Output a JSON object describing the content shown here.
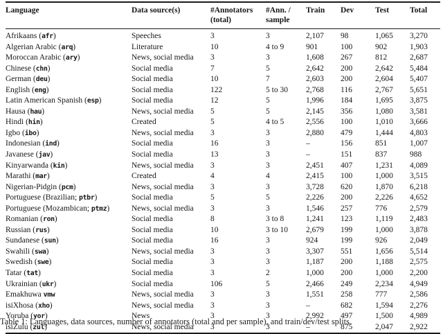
{
  "table": {
    "columns": [
      {
        "l1": "Language",
        "l2": ""
      },
      {
        "l1": "Data source(s)",
        "l2": ""
      },
      {
        "l1": "#Annotators",
        "l2": "(total)"
      },
      {
        "l1": "#Ann. /",
        "l2": "sample"
      },
      {
        "l1": "Train",
        "l2": ""
      },
      {
        "l1": "Dev",
        "l2": ""
      },
      {
        "l1": "Test",
        "l2": ""
      },
      {
        "l1": "Total",
        "l2": ""
      }
    ],
    "rows": [
      {
        "pre": "Afrikaans (",
        "code": "afr",
        "post": ")",
        "source": "Speeches",
        "ann_total": "3",
        "ann_sample": "3",
        "train": "2,107",
        "dev": "98",
        "test": "1,065",
        "total": "3,270"
      },
      {
        "pre": "Algerian Arabic (",
        "code": "arq",
        "post": ")",
        "source": "Literature",
        "ann_total": "10",
        "ann_sample": "4 to 9",
        "train": "901",
        "dev": "100",
        "test": "902",
        "total": "1,903"
      },
      {
        "pre": "Moroccan Arabic (",
        "code": "ary",
        "post": ")",
        "source": "News, social media",
        "ann_total": "3",
        "ann_sample": "3",
        "train": "1,608",
        "dev": "267",
        "test": "812",
        "total": "2,687"
      },
      {
        "pre": "Chinese (",
        "code": "chn",
        "post": ")",
        "source": "Social media",
        "ann_total": "7",
        "ann_sample": "5",
        "train": "2,642",
        "dev": "200",
        "test": "2,642",
        "total": "5,484"
      },
      {
        "pre": "German (",
        "code": "deu",
        "post": ")",
        "source": "Social media",
        "ann_total": "10",
        "ann_sample": "7",
        "train": "2,603",
        "dev": "200",
        "test": "2,604",
        "total": "5,407"
      },
      {
        "pre": "English (",
        "code": "eng",
        "post": ")",
        "source": "Social media",
        "ann_total": "122",
        "ann_sample": "5 to 30",
        "train": "2,768",
        "dev": "116",
        "test": "2,767",
        "total": "5,651"
      },
      {
        "pre": "Latin American Spanish (",
        "code": "esp",
        "post": ")",
        "source": "Social media",
        "ann_total": "12",
        "ann_sample": "5",
        "train": "1,996",
        "dev": "184",
        "test": "1,695",
        "total": "3,875"
      },
      {
        "pre": "Hausa (",
        "code": "hau",
        "post": ")",
        "source": "News, social media",
        "ann_total": "5",
        "ann_sample": "5",
        "train": "2,145",
        "dev": "356",
        "test": "1,080",
        "total": "3,581"
      },
      {
        "pre": "Hindi (",
        "code": "hin",
        "post": ")",
        "source": "Created",
        "ann_total": "5",
        "ann_sample": "4 to 5",
        "train": "2,556",
        "dev": "100",
        "test": "1,010",
        "total": "3,666"
      },
      {
        "pre": "Igbo (",
        "code": "ibo",
        "post": ")",
        "source": "News, social media",
        "ann_total": "3",
        "ann_sample": "3",
        "train": "2,880",
        "dev": "479",
        "test": "1,444",
        "total": "4,803"
      },
      {
        "pre": "Indonesian (",
        "code": "ind",
        "post": ")",
        "source": "Social media",
        "ann_total": "16",
        "ann_sample": "3",
        "train": "–",
        "dev": "156",
        "test": "851",
        "total": "1,007"
      },
      {
        "pre": "Javanese (",
        "code": "jav",
        "post": ")",
        "source": "Social media",
        "ann_total": "13",
        "ann_sample": "3",
        "train": "–",
        "dev": "151",
        "test": "837",
        "total": "988"
      },
      {
        "pre": "Kinyarwanda (",
        "code": "kin",
        "post": ")",
        "source": "News, social media",
        "ann_total": "3",
        "ann_sample": "3",
        "train": "2,451",
        "dev": "407",
        "test": "1,231",
        "total": "4,089"
      },
      {
        "pre": "Marathi (",
        "code": "mar",
        "post": ")",
        "source": "Created",
        "ann_total": "4",
        "ann_sample": "4",
        "train": "2,415",
        "dev": "100",
        "test": "1,000",
        "total": "3,515"
      },
      {
        "pre": "Nigerian-Pidgin (",
        "code": "pcm",
        "post": ")",
        "source": "News, social media",
        "ann_total": "3",
        "ann_sample": "3",
        "train": "3,728",
        "dev": "620",
        "test": "1,870",
        "total": "6,218"
      },
      {
        "pre": "Portuguese (Brazilian; ",
        "code": "ptbr",
        "post": ")",
        "source": "Social media",
        "ann_total": "5",
        "ann_sample": "5",
        "train": "2,226",
        "dev": "200",
        "test": "2,226",
        "total": "4,652"
      },
      {
        "pre": "Portuguese (Mozambican; ",
        "code": "ptmz",
        "post": ")",
        "source": "News, social media",
        "ann_total": "3",
        "ann_sample": "3",
        "train": "1,546",
        "dev": "257",
        "test": "776",
        "total": "2,579"
      },
      {
        "pre": "Romanian (",
        "code": "ron",
        "post": ")",
        "source": "Social media",
        "ann_total": "8",
        "ann_sample": "3 to 8",
        "train": "1,241",
        "dev": "123",
        "test": "1,119",
        "total": "2,483"
      },
      {
        "pre": "Russian (",
        "code": "rus",
        "post": ")",
        "source": "Social media",
        "ann_total": "10",
        "ann_sample": "3 to 10",
        "train": "2,679",
        "dev": "199",
        "test": "1,000",
        "total": "3,878"
      },
      {
        "pre": "Sundanese (",
        "code": "sun",
        "post": ")",
        "source": "Social media",
        "ann_total": "16",
        "ann_sample": "3",
        "train": "924",
        "dev": "199",
        "test": "926",
        "total": "2,049"
      },
      {
        "pre": "Swahili (",
        "code": "swa",
        "post": ")",
        "source": "News, social media",
        "ann_total": "3",
        "ann_sample": "3",
        "train": "3,307",
        "dev": "551",
        "test": "1,656",
        "total": "5,514"
      },
      {
        "pre": "Swedish (",
        "code": "swe",
        "post": ")",
        "source": "Social media",
        "ann_total": "3",
        "ann_sample": "3",
        "train": "1,187",
        "dev": "200",
        "test": "1,188",
        "total": "2,575"
      },
      {
        "pre": "Tatar (",
        "code": "tat",
        "post": ")",
        "source": "Social media",
        "ann_total": "3",
        "ann_sample": "2",
        "train": "1,000",
        "dev": "200",
        "test": "1,000",
        "total": "2,200"
      },
      {
        "pre": "Ukrainian (",
        "code": "ukr",
        "post": ")",
        "source": "Social media",
        "ann_total": "106",
        "ann_sample": "5",
        "train": "2,466",
        "dev": "249",
        "test": "2,234",
        "total": "4,949"
      },
      {
        "pre": "Emakhuwa ",
        "code": "vmw",
        "post": "",
        "source": "News, social media",
        "ann_total": "3",
        "ann_sample": "3",
        "train": "1,551",
        "dev": "258",
        "test": "777",
        "total": "2,586"
      },
      {
        "pre": "isiXhosa (",
        "code": "xho",
        "post": ")",
        "source": "News, social media",
        "ann_total": "3",
        "ann_sample": "3",
        "train": "–",
        "dev": "682",
        "test": "1,594",
        "total": "2,276"
      },
      {
        "pre": "Yoruba (",
        "code": "yor",
        "post": ")",
        "source": "News",
        "ann_total": "3",
        "ann_sample": "3",
        "train": "2,992",
        "dev": "497",
        "test": "1,500",
        "total": "4,989"
      },
      {
        "pre": "isiZulu (",
        "code": "zul",
        "post": ")",
        "source": "News, social media",
        "ann_total": "3",
        "ann_sample": "3",
        "train": "–",
        "dev": "875",
        "test": "2,047",
        "total": "2,922"
      }
    ]
  },
  "caption": {
    "text": "Table 1: Languages, data sources, number of annotators (total and per sample), and train/dev/test splits."
  }
}
